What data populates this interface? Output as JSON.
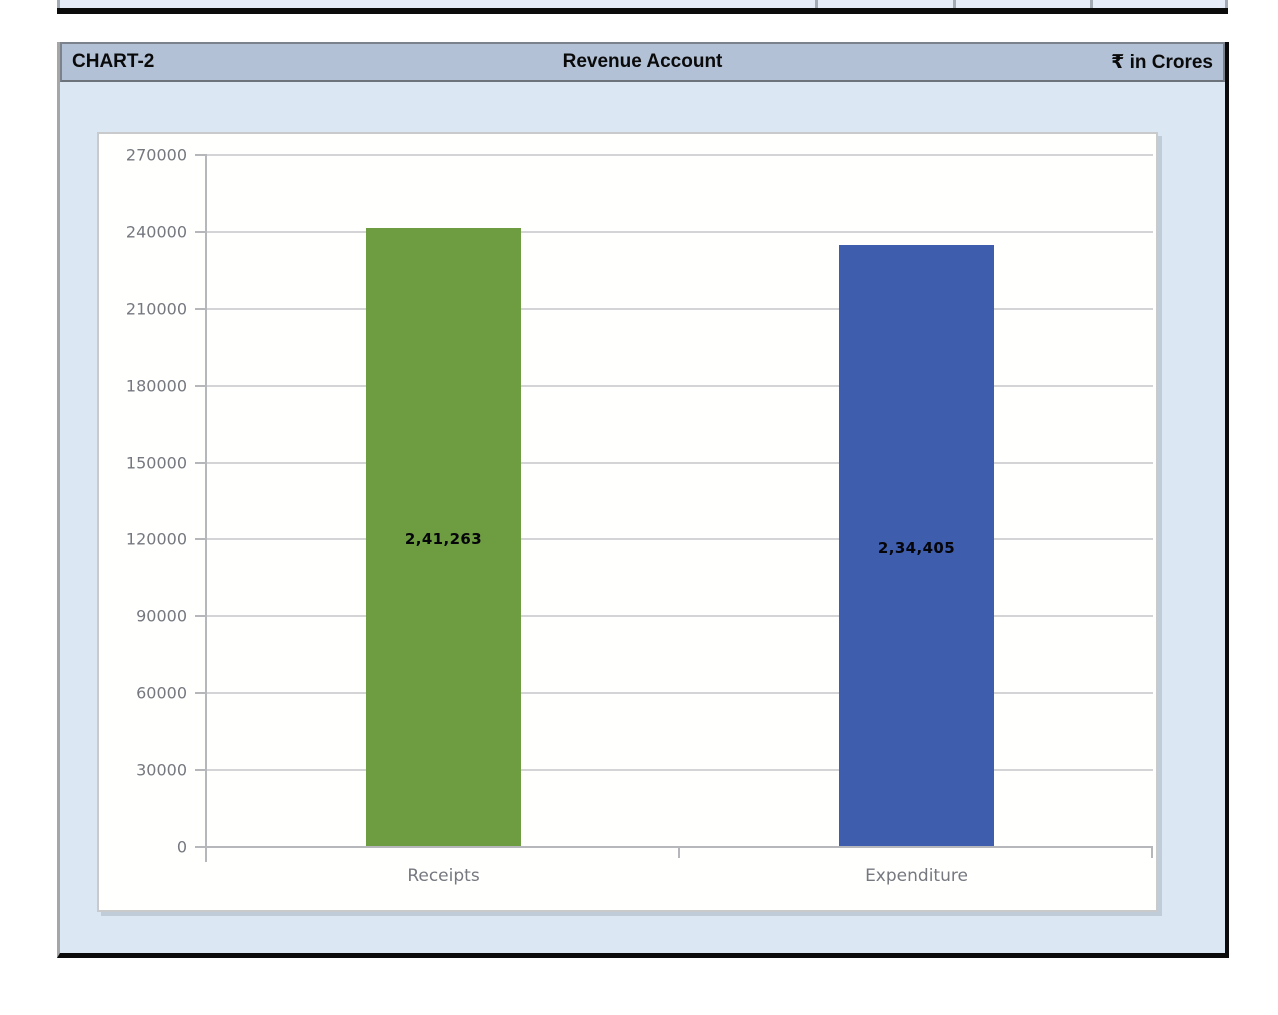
{
  "top_table_remnant": {
    "row_bg": "#e7edf8",
    "divider_color": "#a3aab4",
    "bottom_bar_color": "#0b0b0b"
  },
  "header": {
    "chart_label": "CHART-2",
    "title": "Revenue Account",
    "unit": "₹ in Crores",
    "bg": "#b2c1d6"
  },
  "chart_data": {
    "type": "bar",
    "title": "Revenue Account",
    "unit_label": "₹ in Crores",
    "chart_label": "CHART-2",
    "categories": [
      "Receipts",
      "Expenditure"
    ],
    "values": [
      241263,
      234405
    ],
    "value_labels": [
      "2,41,263",
      "2,34,405"
    ],
    "bar_colors": [
      "#6d9c41",
      "#3e5dad"
    ],
    "ylim": [
      0,
      270000
    ],
    "yticks": [
      0,
      30000,
      60000,
      90000,
      120000,
      150000,
      180000,
      210000,
      240000,
      270000
    ],
    "ytick_labels": [
      "0",
      "30000",
      "60000",
      "90000",
      "120000",
      "150000",
      "180000",
      "210000",
      "240000",
      "270000"
    ],
    "grid": true,
    "legend_position": "none",
    "plot_bg": "#ffffff",
    "outer_bg": "#dce7f4",
    "axis_color": "#b6b7bb",
    "grid_color": "#d4d4d6",
    "tick_label_color": "#75787f"
  }
}
